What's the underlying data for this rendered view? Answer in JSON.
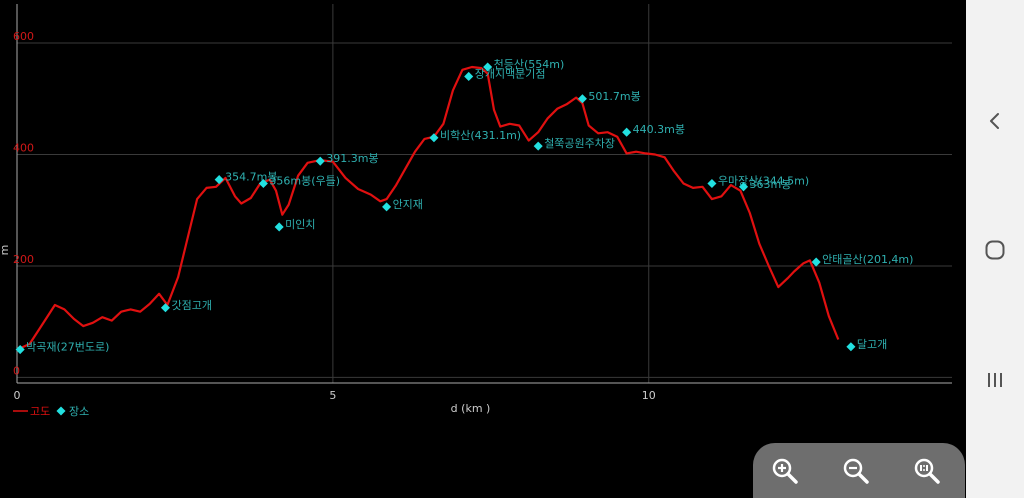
{
  "chart_data": {
    "type": "line",
    "xlabel": "d (km )",
    "ylabel": "m",
    "xlim": [
      0,
      14.8
    ],
    "ylim": [
      -10,
      670
    ],
    "x_ticks": [
      0,
      5,
      10
    ],
    "y_ticks": [
      0,
      200,
      400,
      600
    ],
    "grid": true,
    "legend_position": "bottom-left",
    "series": [
      {
        "name": "고도",
        "color": "#e01010",
        "points": [
          [
            0.0,
            50
          ],
          [
            0.2,
            60
          ],
          [
            0.4,
            95
          ],
          [
            0.6,
            130
          ],
          [
            0.75,
            122
          ],
          [
            0.9,
            105
          ],
          [
            1.05,
            92
          ],
          [
            1.2,
            98
          ],
          [
            1.35,
            108
          ],
          [
            1.5,
            102
          ],
          [
            1.65,
            118
          ],
          [
            1.8,
            122
          ],
          [
            1.95,
            118
          ],
          [
            2.1,
            132
          ],
          [
            2.25,
            150
          ],
          [
            2.38,
            130
          ],
          [
            2.55,
            180
          ],
          [
            2.7,
            250
          ],
          [
            2.85,
            320
          ],
          [
            3.0,
            340
          ],
          [
            3.15,
            342
          ],
          [
            3.3,
            358
          ],
          [
            3.45,
            325
          ],
          [
            3.55,
            312
          ],
          [
            3.7,
            322
          ],
          [
            3.85,
            348
          ],
          [
            4.0,
            355
          ],
          [
            4.1,
            335
          ],
          [
            4.2,
            292
          ],
          [
            4.3,
            310
          ],
          [
            4.45,
            362
          ],
          [
            4.6,
            385
          ],
          [
            4.8,
            390
          ],
          [
            5.0,
            387
          ],
          [
            5.2,
            358
          ],
          [
            5.4,
            338
          ],
          [
            5.6,
            328
          ],
          [
            5.75,
            316
          ],
          [
            5.85,
            320
          ],
          [
            6.0,
            345
          ],
          [
            6.15,
            375
          ],
          [
            6.3,
            405
          ],
          [
            6.45,
            428
          ],
          [
            6.6,
            432
          ],
          [
            6.75,
            455
          ],
          [
            6.9,
            515
          ],
          [
            7.05,
            552
          ],
          [
            7.2,
            557
          ],
          [
            7.35,
            555
          ],
          [
            7.45,
            545
          ],
          [
            7.55,
            480
          ],
          [
            7.65,
            450
          ],
          [
            7.8,
            455
          ],
          [
            7.95,
            452
          ],
          [
            8.1,
            425
          ],
          [
            8.25,
            440
          ],
          [
            8.4,
            465
          ],
          [
            8.55,
            482
          ],
          [
            8.7,
            490
          ],
          [
            8.85,
            502
          ],
          [
            8.95,
            492
          ],
          [
            9.05,
            452
          ],
          [
            9.2,
            438
          ],
          [
            9.35,
            440
          ],
          [
            9.5,
            432
          ],
          [
            9.65,
            402
          ],
          [
            9.8,
            405
          ],
          [
            9.95,
            402
          ],
          [
            10.1,
            400
          ],
          [
            10.25,
            395
          ],
          [
            10.4,
            370
          ],
          [
            10.55,
            348
          ],
          [
            10.7,
            340
          ],
          [
            10.85,
            342
          ],
          [
            11.0,
            320
          ],
          [
            11.15,
            325
          ],
          [
            11.3,
            345
          ],
          [
            11.45,
            335
          ],
          [
            11.6,
            295
          ],
          [
            11.75,
            240
          ],
          [
            11.9,
            200
          ],
          [
            12.05,
            162
          ],
          [
            12.2,
            178
          ],
          [
            12.3,
            190
          ],
          [
            12.45,
            205
          ],
          [
            12.55,
            210
          ],
          [
            12.7,
            170
          ],
          [
            12.85,
            110
          ],
          [
            13.0,
            68
          ]
        ]
      }
    ],
    "places": {
      "name": "장소",
      "color": "#22e0e0",
      "label_color": "#2fb0b0",
      "items": [
        {
          "x": 0.05,
          "y": 50,
          "label": "박곡재(27번도로)"
        },
        {
          "x": 2.35,
          "y": 125,
          "label": "갓점고개"
        },
        {
          "x": 3.2,
          "y": 355,
          "label": "354.7m봉"
        },
        {
          "x": 3.9,
          "y": 348,
          "label": "356m봉(우틀)"
        },
        {
          "x": 4.15,
          "y": 270,
          "label": "미인치"
        },
        {
          "x": 4.8,
          "y": 388,
          "label": "391.3m봉"
        },
        {
          "x": 5.85,
          "y": 306,
          "label": "안지재"
        },
        {
          "x": 6.6,
          "y": 430,
          "label": "비학산(431.1m)"
        },
        {
          "x": 7.15,
          "y": 540,
          "label": "장개지맥분기점"
        },
        {
          "x": 7.45,
          "y": 557,
          "label": "천등산(554m)"
        },
        {
          "x": 8.25,
          "y": 415,
          "label": "철쭉공원주차장"
        },
        {
          "x": 8.95,
          "y": 500,
          "label": "501.7m봉"
        },
        {
          "x": 9.65,
          "y": 440,
          "label": "440.3m봉"
        },
        {
          "x": 11.0,
          "y": 348,
          "label": "우마장산(344.5m)"
        },
        {
          "x": 11.5,
          "y": 342,
          "label": "363m봉"
        },
        {
          "x": 12.65,
          "y": 207,
          "label": "안태골산(201,4m)"
        },
        {
          "x": 13.2,
          "y": 55,
          "label": "달고개"
        }
      ]
    }
  },
  "navbar": {
    "icons": [
      "back-chevron-icon",
      "home-circle-icon",
      "recent-apps-icon"
    ]
  },
  "zoom_controls": {
    "icons": [
      "zoom-in-icon",
      "zoom-out-icon",
      "zoom-fit-icon"
    ]
  }
}
